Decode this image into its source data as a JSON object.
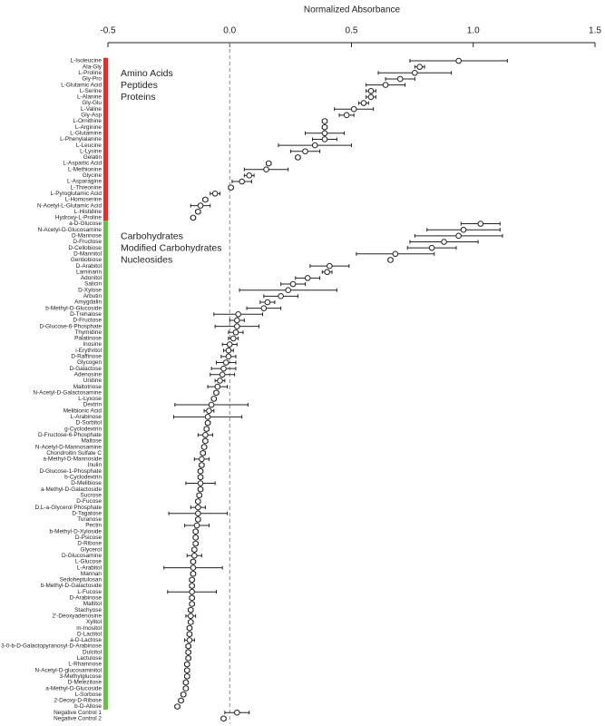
{
  "chart_data": {
    "type": "dot",
    "xlabel": "Normalized Absorbance",
    "xlim": [
      -0.5,
      1.5
    ],
    "xticks": [
      -0.5,
      {
        "value": 0,
        "label": "0.0"
      },
      0.5,
      {
        "value": 1,
        "label": "1.0"
      },
      1.5
    ],
    "series": [
      {
        "group": [
          "Amino Acids",
          "Peptides",
          "Proteins"
        ],
        "color": "#e2302a",
        "categories": [
          "L-Isoleucine",
          "Ala-Gly",
          "L-Proline",
          "Gly-Pro",
          "L-Glutamic Acid",
          "L-Serine",
          "L-Alanine",
          "Gly-Glu",
          "L-Valine",
          "Gly-Asp",
          "L-Ornithine",
          "L-Arginine",
          "L-Glutamine",
          "L-Phenylalanine",
          "L-Leucine",
          "L-Lysine",
          "Gelatin",
          "L-Aspartic Acid",
          "L-Methionine",
          "Glycine",
          "L-Asparagine",
          "L-Threonine",
          "L-Pyroglutamic Acid",
          "L-Homoserine",
          "N-Acetyl-L-Glutamic Acid",
          "L-Histidine",
          "Hydroxy-L-Proline"
        ],
        "values": [
          0.94,
          0.78,
          0.76,
          0.7,
          0.64,
          0.58,
          0.58,
          0.55,
          0.51,
          0.48,
          0.39,
          0.39,
          0.39,
          0.39,
          0.35,
          0.31,
          0.28,
          0.16,
          0.15,
          0.08,
          0.05,
          0.005,
          -0.06,
          -0.1,
          -0.12,
          -0.13,
          -0.15
        ],
        "errors": [
          0.2,
          0.02,
          0.15,
          0.06,
          0.08,
          0.02,
          0.02,
          0.02,
          0.08,
          0.03,
          0.01,
          0.01,
          0.08,
          0.05,
          0.15,
          0.06,
          0.01,
          0.01,
          0.09,
          0.02,
          0.04,
          0.01,
          0.02,
          0.01,
          0.04,
          0.01,
          0.01
        ]
      },
      {
        "group": [
          "Carbohydrates",
          "Modified Carbohydrates",
          "Nucleosides"
        ],
        "color": "#6abf4b",
        "categories": [
          "a-D-Glucose",
          "N-Acetyl-D-Glucosamine",
          "D-Mannose",
          "D-Fructose",
          "D-Cellobiose",
          "D-Mannitol",
          "Gentiobiose",
          "D-Arabitol",
          "Laminarin",
          "Adonitol",
          "Salicin",
          "D-Xylose",
          "Arbutin",
          "Amygdalin",
          "b-Methyl-D-Glucoside",
          "D-Trehalose",
          "D-Fructose",
          "D-Glucose-6-Phosphate",
          "Thymidine",
          "Palatinose",
          "Inosine",
          "i-Erythritol",
          "D-Raffinose",
          "Glycogen",
          "D-Galactose",
          "Adenosine",
          "Uridine",
          "Maltotriose",
          "N-Acetyl-D-Galactosamine",
          "L-Lyxose",
          "Dextrin",
          "Melibionic Acid",
          "L-Arabinose",
          "D-Sorbitol",
          "g-Cyclodextrin",
          "D-Fructose-6-Phosphate",
          "Maltose",
          "N-Acetyl-D-Mannosamine",
          "Chondroitin Sulfate C",
          "a-Methyl-D-Mannoside",
          "Inulin",
          "D-Glucose-1-Phosphate",
          "b-Cyclodextrin",
          "D-Melibiose",
          "a-Methyl-D-Galactoside",
          "Sucrose",
          "D-Fucose",
          "D,L-a-Glycerol Phosphate",
          "D-Tagatose",
          "Turanose",
          "Pectin",
          "b-Methyl-D-Xyloside",
          "D-Psicose",
          "D-Ribose",
          "Glycerol",
          "D-Glucosamine",
          "L-Glucose",
          "L-Arabitol",
          "Mannan",
          "Sedoheptulosan",
          "b-Methyl-D-Galactoside",
          "L-Fucose",
          "D-Arabinose",
          "Maltitol",
          "Stachyose",
          "2'-Deoxyadenosine",
          "Xylitol",
          "m-Inositol",
          "D-Lactitol",
          "a-D-Lactose",
          "3-0-b-D-Galactopyranosyl-D-Arabinose",
          "Dulcitol",
          "Lactulose",
          "L-Rhamnose",
          "N-Acetyl-D-glucosaminitol",
          "3-Methylglucose",
          "D-Melezitose",
          "a-Methyl-D-Glucoside",
          "L-Sorbose",
          "2-Deoxy-D-Ribose",
          "b-D-Allose"
        ],
        "values": [
          1.03,
          0.96,
          0.94,
          0.88,
          0.83,
          0.68,
          0.66,
          0.41,
          0.4,
          0.32,
          0.26,
          0.24,
          0.21,
          0.155,
          0.14,
          0.035,
          0.03,
          0.03,
          0.025,
          0.015,
          0.0,
          -0.005,
          -0.005,
          -0.015,
          -0.025,
          -0.03,
          -0.04,
          -0.05,
          -0.055,
          -0.065,
          -0.075,
          -0.085,
          -0.09,
          -0.09,
          -0.095,
          -0.1,
          -0.1,
          -0.105,
          -0.11,
          -0.115,
          -0.115,
          -0.12,
          -0.12,
          -0.12,
          -0.12,
          -0.125,
          -0.13,
          -0.13,
          -0.13,
          -0.13,
          -0.135,
          -0.14,
          -0.14,
          -0.14,
          -0.145,
          -0.145,
          -0.15,
          -0.15,
          -0.15,
          -0.155,
          -0.155,
          -0.155,
          -0.155,
          -0.155,
          -0.16,
          -0.16,
          -0.16,
          -0.165,
          -0.165,
          -0.165,
          -0.17,
          -0.17,
          -0.17,
          -0.175,
          -0.175,
          -0.175,
          -0.18,
          -0.18,
          -0.19,
          -0.2,
          -0.215
        ],
        "errors": [
          0.08,
          0.15,
          0.18,
          0.14,
          0.1,
          0.16,
          0.01,
          0.08,
          0.02,
          0.05,
          0.05,
          0.2,
          0.07,
          0.03,
          0.07,
          0.1,
          0.03,
          0.09,
          0.03,
          0.02,
          0.03,
          0.02,
          0.03,
          0.04,
          0.05,
          0.05,
          0.02,
          0.04,
          0.01,
          0.01,
          0.15,
          0.02,
          0.14,
          0.01,
          0.01,
          0.03,
          0.01,
          0.01,
          0.01,
          0.03,
          0.01,
          0.01,
          0.01,
          0.06,
          0.01,
          0.01,
          0.01,
          0.03,
          0.12,
          0.01,
          0.05,
          0.01,
          0.01,
          0.01,
          0.01,
          0.03,
          0.01,
          0.12,
          0.01,
          0.01,
          0.01,
          0.1,
          0.01,
          0.01,
          0.01,
          0.02,
          0.01,
          0.01,
          0.01,
          0.02,
          0.01,
          0.01,
          0.01,
          0.01,
          0.01,
          0.01,
          0.01,
          0.01,
          0.01,
          0.01,
          0.01
        ]
      },
      {
        "categories": [
          "Negative Control 1",
          "Negative Control 2"
        ],
        "values": [
          0.03,
          -0.025
        ],
        "errors": [
          0.05,
          0.01
        ]
      }
    ]
  }
}
